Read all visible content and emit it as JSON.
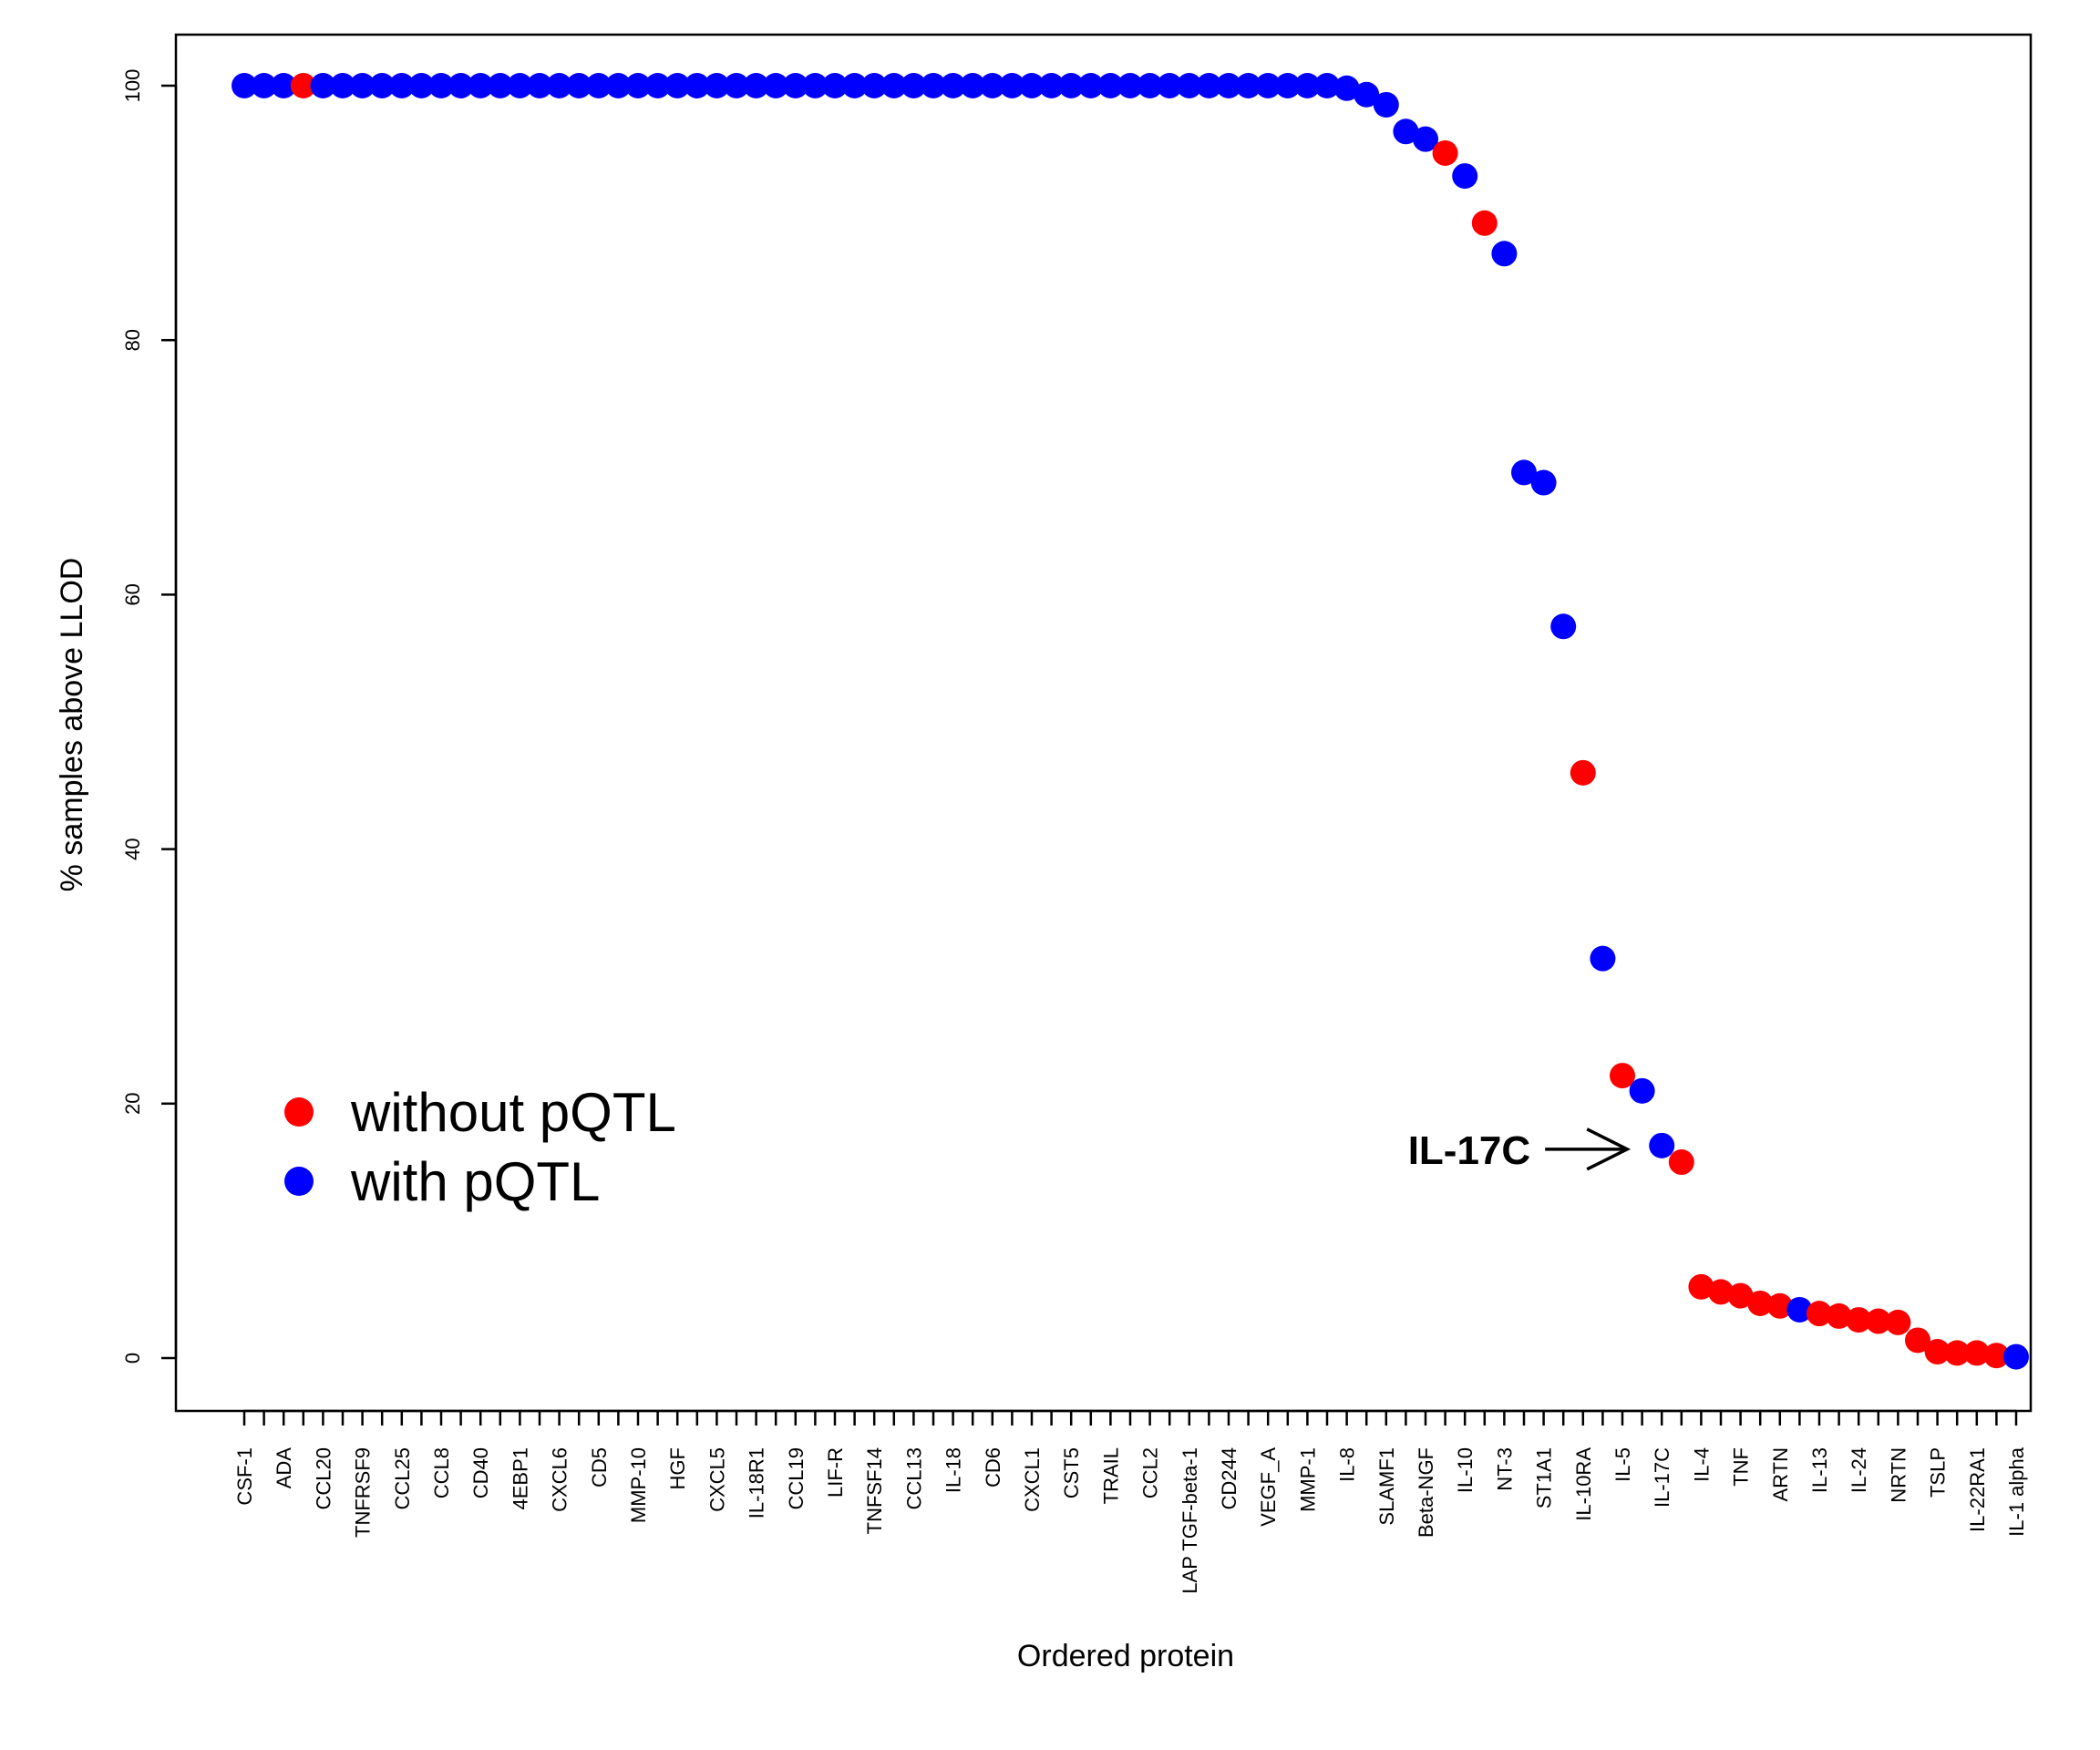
{
  "chart_data": {
    "type": "scatter",
    "xlabel": "Ordered protein",
    "ylabel": "% samples above LLOD",
    "ylim": [
      0,
      100
    ],
    "yticks": [
      0,
      20,
      40,
      60,
      80,
      100
    ],
    "categories": [
      "CSF-1",
      "",
      "ADA",
      "",
      "CCL20",
      "",
      "TNFRSF9",
      "",
      "CCL25",
      "",
      "CCL8",
      "",
      "CD40",
      "",
      "4EBP1",
      "",
      "CXCL6",
      "",
      "CD5",
      "",
      "MMP-10",
      "",
      "HGF",
      "",
      "CXCL5",
      "",
      "IL-18R1",
      "",
      "CCL19",
      "",
      "LIF-R",
      "",
      "TNFSF14",
      "",
      "CCL13",
      "",
      "IL-18",
      "",
      "CD6",
      "",
      "CXCL1",
      "",
      "CST5",
      "",
      "TRAIL",
      "",
      "CCL2",
      "",
      "LAP TGF-beta-1",
      "",
      "CD244",
      "",
      "VEGF_A",
      "",
      "MMP-1",
      "",
      "IL-8",
      "",
      "SLAMF1",
      "",
      "Beta-NGF",
      "",
      "IL-10",
      "",
      "NT-3",
      "",
      "ST1A1",
      "",
      "IL-10RA",
      "",
      "IL-5",
      "",
      "IL-17C",
      "",
      "IL-4",
      "",
      "TNF",
      "",
      "ARTN",
      "",
      "IL-13",
      "",
      "IL-24",
      "",
      "NRTN",
      "",
      "TSLP",
      "",
      "IL-22RA1",
      "",
      "IL-1 alpha"
    ],
    "values": [
      100,
      100,
      100,
      100,
      100,
      100,
      100,
      100,
      100,
      100,
      100,
      100,
      100,
      100,
      100,
      100,
      100,
      100,
      100,
      100,
      100,
      100,
      100,
      100,
      100,
      100,
      100,
      100,
      100,
      100,
      100,
      100,
      100,
      100,
      100,
      100,
      100,
      100,
      100,
      100,
      100,
      100,
      100,
      100,
      100,
      100,
      100,
      100,
      100,
      100,
      100,
      100,
      100,
      100,
      100,
      100,
      99.8,
      99.3,
      98.5,
      96.4,
      95.8,
      94.7,
      92.9,
      89.2,
      86.8,
      69.6,
      68.8,
      57.5,
      46.0,
      31.4,
      22.2,
      21.0,
      16.7,
      15.4,
      5.6,
      5.2,
      4.9,
      4.3,
      4.1,
      3.8,
      3.5,
      3.3,
      3.0,
      2.9,
      2.8,
      1.4,
      0.5,
      0.4,
      0.4,
      0.2,
      0.1
    ],
    "groups": [
      "with",
      "with",
      "with",
      "without",
      "with",
      "with",
      "with",
      "with",
      "with",
      "with",
      "with",
      "with",
      "with",
      "with",
      "with",
      "with",
      "with",
      "with",
      "with",
      "with",
      "with",
      "with",
      "with",
      "with",
      "with",
      "with",
      "with",
      "with",
      "with",
      "with",
      "with",
      "with",
      "with",
      "with",
      "with",
      "with",
      "with",
      "with",
      "with",
      "with",
      "with",
      "with",
      "with",
      "with",
      "with",
      "with",
      "with",
      "with",
      "with",
      "with",
      "with",
      "with",
      "with",
      "with",
      "with",
      "with",
      "with",
      "with",
      "with",
      "with",
      "with",
      "without",
      "with",
      "without",
      "with",
      "with",
      "with",
      "with",
      "without",
      "with",
      "without",
      "with",
      "with",
      "without",
      "without",
      "without",
      "without",
      "without",
      "without",
      "with",
      "without",
      "without",
      "without",
      "without",
      "without",
      "without",
      "without",
      "without",
      "without",
      "without",
      "with"
    ],
    "legend": [
      {
        "key": "without",
        "label": "without pQTL",
        "color": "#ff0000"
      },
      {
        "key": "with",
        "label": "with pQTL",
        "color": "#0000ff"
      }
    ],
    "legend_position": "bottom-left",
    "annotation": {
      "text": "IL-17C",
      "target_label": "IL-17C"
    },
    "grid": false
  }
}
